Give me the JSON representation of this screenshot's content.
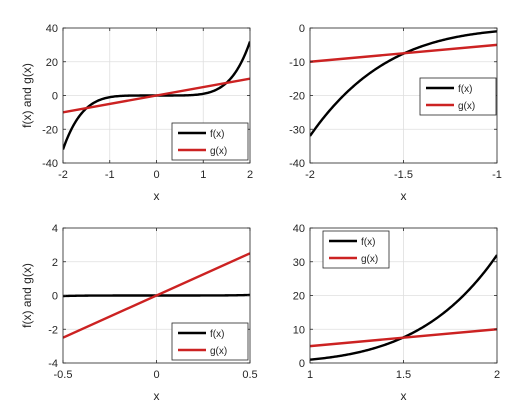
{
  "chart_data": [
    {
      "type": "line",
      "xlabel": "x",
      "ylabel": "f(x) and g(x)",
      "xlim": [
        -2,
        2
      ],
      "ylim": [
        -40,
        40
      ],
      "xticks": [
        -2,
        -1,
        0,
        1,
        2
      ],
      "yticks": [
        -40,
        -20,
        0,
        20,
        40
      ],
      "grid": true,
      "legend_position": "bottom-right",
      "series": [
        {
          "name": "f(x)",
          "color": "#000000",
          "x": [
            -2,
            -1.5,
            -1,
            -0.5,
            0,
            0.5,
            1,
            1.5,
            2
          ],
          "y": [
            -32,
            -7.6,
            -1,
            -0.03,
            0,
            0.03,
            1,
            7.6,
            32
          ]
        },
        {
          "name": "g(x)",
          "color": "#cc2222",
          "x": [
            -2,
            2
          ],
          "y": [
            -10,
            10
          ]
        }
      ]
    },
    {
      "type": "line",
      "xlabel": "x",
      "ylabel": "",
      "xlim": [
        -2,
        -1
      ],
      "ylim": [
        -40,
        0
      ],
      "xticks": [
        -2,
        -1.5,
        -1
      ],
      "yticks": [
        -40,
        -30,
        -20,
        -10,
        0
      ],
      "grid": true,
      "legend_position": "right",
      "series": [
        {
          "name": "f(x)",
          "color": "#000000",
          "x": [
            -2,
            -1.75,
            -1.5,
            -1.25,
            -1
          ],
          "y": [
            -32,
            -15.0,
            -7.6,
            -3.05,
            -1
          ]
        },
        {
          "name": "g(x)",
          "color": "#cc2222",
          "x": [
            -2,
            -1
          ],
          "y": [
            -10,
            -5
          ]
        }
      ]
    },
    {
      "type": "line",
      "xlabel": "x",
      "ylabel": "f(x) and g(x)",
      "xlim": [
        -0.5,
        0.5
      ],
      "ylim": [
        -4,
        4
      ],
      "xticks": [
        -0.5,
        0,
        0.5
      ],
      "yticks": [
        -4,
        -2,
        0,
        2,
        4
      ],
      "grid": true,
      "legend_position": "bottom-right",
      "series": [
        {
          "name": "f(x)",
          "color": "#000000",
          "x": [
            -0.5,
            -0.25,
            0,
            0.25,
            0.5
          ],
          "y": [
            -0.03,
            -0.0003,
            0,
            0.0003,
            0.03
          ]
        },
        {
          "name": "g(x)",
          "color": "#cc2222",
          "x": [
            -0.5,
            0.5
          ],
          "y": [
            -2.5,
            2.5
          ]
        }
      ]
    },
    {
      "type": "line",
      "xlabel": "x",
      "ylabel": "",
      "xlim": [
        1,
        2
      ],
      "ylim": [
        0,
        40
      ],
      "xticks": [
        1,
        1.5,
        2
      ],
      "yticks": [
        0,
        10,
        20,
        30,
        40
      ],
      "grid": true,
      "legend_position": "top-left",
      "series": [
        {
          "name": "f(x)",
          "color": "#000000",
          "x": [
            1,
            1.25,
            1.5,
            1.75,
            2
          ],
          "y": [
            1,
            3.05,
            7.6,
            15.0,
            32
          ]
        },
        {
          "name": "g(x)",
          "color": "#cc2222",
          "x": [
            1,
            2
          ],
          "y": [
            5,
            10
          ]
        }
      ]
    }
  ]
}
